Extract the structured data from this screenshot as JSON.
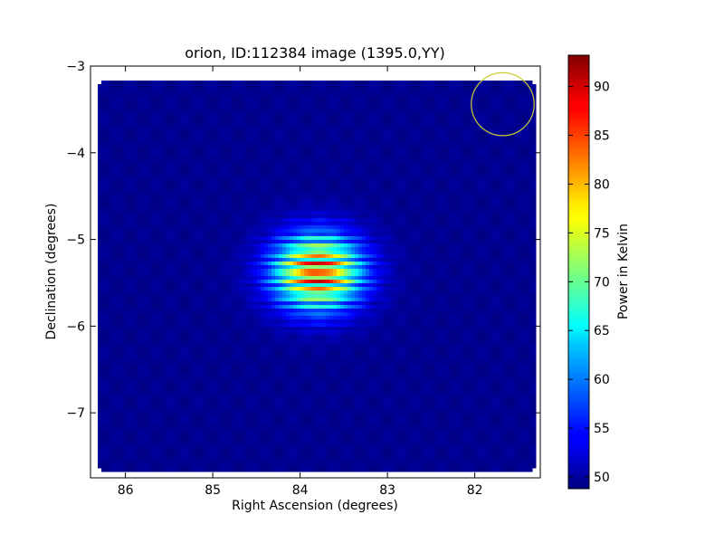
{
  "chart_data": {
    "type": "heatmap",
    "title": "orion, ID:112384 image (1395.0,YY)",
    "xlabel": "Right Ascension (degrees)",
    "ylabel": "Declination (degrees)",
    "xlim": [
      86.4,
      81.25
    ],
    "ylim": [
      -7.75,
      -3.0
    ],
    "x_ticks": [
      86,
      85,
      84,
      83,
      82
    ],
    "x_tick_labels": [
      "86",
      "85",
      "84",
      "83",
      "82"
    ],
    "y_ticks": [
      -3,
      -4,
      -5,
      -6,
      -7
    ],
    "y_tick_labels": [
      "−3",
      "−4",
      "−5",
      "−6",
      "−7"
    ],
    "colormap": "jet",
    "colorbar": {
      "label": "Power in Kelvin",
      "range": [
        48.8,
        93.2
      ],
      "ticks": [
        50,
        55,
        60,
        65,
        70,
        75,
        80,
        85,
        90
      ],
      "tick_labels": [
        "50",
        "55",
        "60",
        "65",
        "70",
        "75",
        "80",
        "85",
        "90"
      ]
    },
    "background_level": 49.5,
    "source": {
      "ra_center": 83.8,
      "dec_center": -5.38,
      "peak": 93,
      "sigma_ra": 0.35,
      "sigma_dec": 0.3,
      "fringe_period_dec": 0.1
    },
    "beam_circle": {
      "ra": 81.68,
      "dec": -3.44,
      "radius_deg": 0.36,
      "color": "#cccc33"
    },
    "grid": false,
    "legend": "none"
  }
}
